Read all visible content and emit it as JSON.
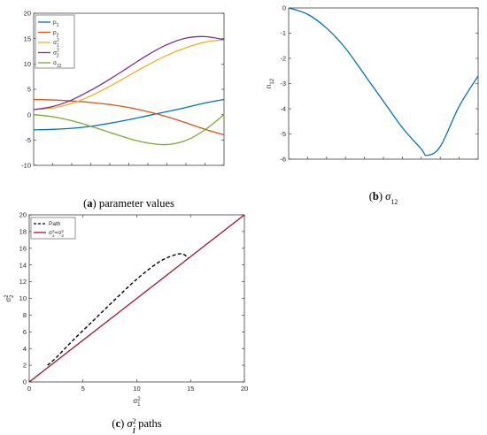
{
  "chart_data": [
    {
      "type": "line",
      "caption": {
        "letter": "a",
        "text": "parameter values"
      },
      "ylim": [
        -10,
        20
      ],
      "yticks": [
        "-10",
        "-5",
        "0",
        "5",
        "10",
        "15",
        "20"
      ],
      "grid": false,
      "legend_position": "top-left",
      "x": [
        0,
        0.1,
        0.2,
        0.3,
        0.4,
        0.5,
        0.6,
        0.7,
        0.8,
        0.9,
        1.0
      ],
      "series": [
        {
          "name": "p1",
          "color": "#0072BD",
          "values": [
            -3.0,
            -2.9,
            -2.7,
            -2.3,
            -1.7,
            -1.0,
            -0.2,
            0.6,
            1.4,
            2.3,
            3.0
          ]
        },
        {
          "name": "p2",
          "color": "#D95319",
          "values": [
            3.0,
            2.9,
            2.7,
            2.4,
            2.0,
            1.4,
            0.6,
            -0.4,
            -1.6,
            -2.9,
            -4.0
          ]
        },
        {
          "name": "σ₁²",
          "color": "#EDB120",
          "values": [
            1.0,
            1.3,
            2.2,
            3.7,
            5.6,
            7.7,
            9.8,
            11.7,
            13.2,
            14.3,
            14.8
          ]
        },
        {
          "name": "σ₂²",
          "color": "#7E2F8E",
          "values": [
            1.0,
            1.6,
            2.9,
            4.8,
            7.0,
            9.4,
            11.8,
            13.8,
            15.1,
            15.4,
            14.8
          ]
        },
        {
          "name": "σ₁₂",
          "color": "#77AC30",
          "values": [
            0,
            -0.4,
            -1.2,
            -2.3,
            -3.5,
            -4.7,
            -5.6,
            -5.9,
            -5.1,
            -3.0,
            0
          ]
        }
      ]
    },
    {
      "type": "line",
      "caption": {
        "letter": "b",
        "symbol": "σ",
        "sub": "12"
      },
      "ylabel": "n₁₂",
      "ylim": [
        -6,
        0
      ],
      "yticks": [
        "-6",
        "-5",
        "-4",
        "-3",
        "-2",
        "-1",
        "0"
      ],
      "grid": false,
      "x": [
        0,
        0.1,
        0.2,
        0.3,
        0.4,
        0.5,
        0.6,
        0.7,
        0.73,
        0.8,
        0.9,
        1.0
      ],
      "series": [
        {
          "color": "#0072BD",
          "values": [
            0,
            -0.25,
            -0.8,
            -1.6,
            -2.65,
            -3.7,
            -4.75,
            -5.6,
            -5.85,
            -5.5,
            -3.9,
            -2.7
          ]
        }
      ]
    },
    {
      "type": "line",
      "caption": {
        "letter": "c",
        "symbol": "σ",
        "sup": "2",
        "sub": "i",
        "text": "paths"
      },
      "xlabel": "σ₁²",
      "ylabel": "σ₂²",
      "xlim": [
        0,
        20
      ],
      "ylim": [
        0,
        20
      ],
      "xticks": [
        "0",
        "5",
        "10",
        "15",
        "20"
      ],
      "yticks": [
        "0",
        "2",
        "4",
        "6",
        "8",
        "10",
        "12",
        "14",
        "16",
        "18",
        "20"
      ],
      "grid": false,
      "legend_position": "top-left",
      "series": [
        {
          "name": "Path",
          "color": "#000000",
          "style": "dashed",
          "x": [
            1.7,
            2.5,
            4.0,
            6.0,
            8.0,
            10.0,
            12.0,
            13.5,
            14.3,
            14.8
          ],
          "y": [
            2.0,
            2.9,
            4.9,
            7.4,
            9.9,
            12.3,
            14.3,
            15.2,
            15.3,
            14.8
          ]
        },
        {
          "name": "σ₁²=σ₂²",
          "color": "#A2142F",
          "style": "solid",
          "x": [
            0,
            20
          ],
          "y": [
            0,
            20
          ]
        }
      ]
    }
  ]
}
